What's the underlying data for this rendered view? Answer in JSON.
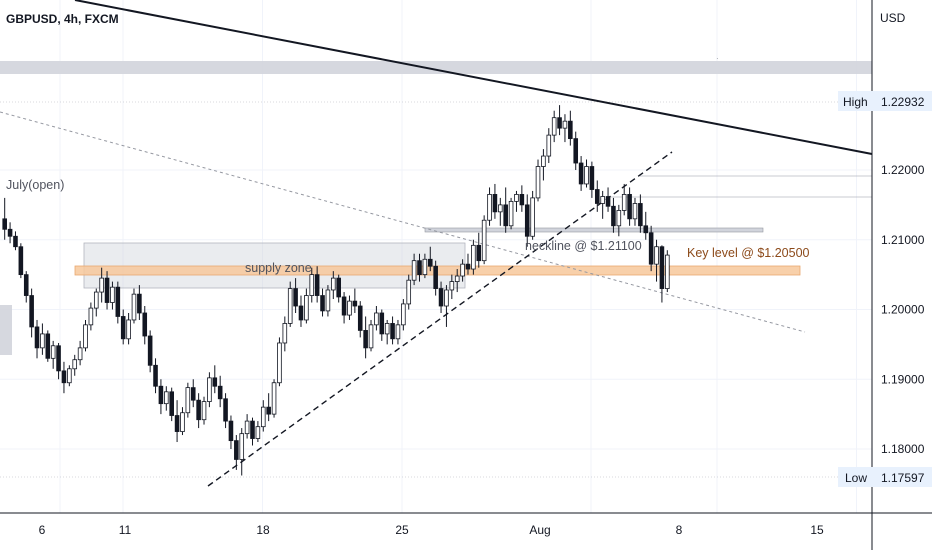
{
  "header": {
    "symbol": "GBPUSD, 4h, FXCM"
  },
  "price_axis": {
    "currency": "USD",
    "high_label": "High",
    "high_value": "1.22932",
    "low_label": "Low",
    "low_value": "1.17597"
  },
  "annotations": {
    "month_open": "July(open)",
    "supply_zone": "supply zone",
    "neckline": "neckline @ $1.21100",
    "key_level": "Key level @ $1.20500"
  },
  "colors": {
    "bull": "#ffffff",
    "bear": "#131722",
    "wick": "#131722",
    "grid": "#f0f3fa",
    "supply_zone": "#d1d4dc",
    "key_level": "#f7c89b",
    "key_level_text": "#8c4a1a",
    "trendline": "#131722",
    "tag_bg": "#e8f1fd"
  },
  "chart_data": {
    "type": "candlestick",
    "title": "GBPUSD, 4h, FXCM",
    "y_unit": "USD",
    "ylim": [
      1.1715,
      1.238
    ],
    "y_ticks": [
      1.18,
      1.19,
      1.2,
      1.21,
      1.22
    ],
    "y_tick_labels": [
      "1.18000",
      "1.19000",
      "1.20000",
      "1.21000",
      "1.22000"
    ],
    "x_tick_labels": [
      "6",
      "11",
      "18",
      "25",
      "Aug",
      "8",
      "15"
    ],
    "x_tick_bars": [
      4,
      18,
      49,
      80,
      122,
      150,
      181
    ],
    "bar_count_visible": 195,
    "high": 1.22932,
    "low": 1.17597,
    "candles": [
      [
        1.213,
        1.216,
        1.21,
        1.2115
      ],
      [
        1.2115,
        1.2125,
        1.2095,
        1.2105
      ],
      [
        1.2105,
        1.2112,
        1.2085,
        1.209
      ],
      [
        1.209,
        1.2095,
        1.2045,
        1.205
      ],
      [
        1.205,
        1.2055,
        1.201,
        1.202
      ],
      [
        1.202,
        1.203,
        1.196,
        1.1975
      ],
      [
        1.1975,
        1.1985,
        1.193,
        1.1945
      ],
      [
        1.1945,
        1.198,
        1.1935,
        1.1965
      ],
      [
        1.1965,
        1.197,
        1.1925,
        1.193
      ],
      [
        1.193,
        1.1955,
        1.1915,
        1.1948
      ],
      [
        1.1948,
        1.1952,
        1.19,
        1.1912
      ],
      [
        1.1912,
        1.1925,
        1.188,
        1.1895
      ],
      [
        1.1895,
        1.192,
        1.189,
        1.1915
      ],
      [
        1.1915,
        1.1935,
        1.1905,
        1.1928
      ],
      [
        1.1928,
        1.1955,
        1.192,
        1.1945
      ],
      [
        1.1945,
        1.1985,
        1.194,
        1.1978
      ],
      [
        1.1978,
        1.201,
        1.197,
        1.2002
      ],
      [
        1.2002,
        1.203,
        1.199,
        1.2025
      ],
      [
        1.2025,
        1.206,
        1.201,
        1.2045
      ],
      [
        1.2045,
        1.2055,
        1.2,
        1.201
      ],
      [
        1.201,
        1.204,
        1.2,
        1.2032
      ],
      [
        1.2032,
        1.204,
        1.198,
        1.199
      ],
      [
        1.199,
        1.2,
        1.195,
        1.1958
      ],
      [
        1.1958,
        1.1995,
        1.195,
        1.1985
      ],
      [
        1.1985,
        1.203,
        1.198,
        1.2022
      ],
      [
        1.2022,
        1.2035,
        1.1985,
        1.1995
      ],
      [
        1.1995,
        1.2005,
        1.195,
        1.1962
      ],
      [
        1.1962,
        1.197,
        1.191,
        1.192
      ],
      [
        1.192,
        1.193,
        1.188,
        1.189
      ],
      [
        1.189,
        1.19,
        1.185,
        1.1865
      ],
      [
        1.1865,
        1.189,
        1.1855,
        1.1882
      ],
      [
        1.1882,
        1.1888,
        1.184,
        1.1848
      ],
      [
        1.1848,
        1.187,
        1.181,
        1.1825
      ],
      [
        1.1825,
        1.186,
        1.182,
        1.1852
      ],
      [
        1.1852,
        1.1895,
        1.1845,
        1.1888
      ],
      [
        1.1888,
        1.19,
        1.186,
        1.187
      ],
      [
        1.187,
        1.188,
        1.183,
        1.1842
      ],
      [
        1.1842,
        1.1875,
        1.1835,
        1.1868
      ],
      [
        1.1868,
        1.191,
        1.186,
        1.1902
      ],
      [
        1.1902,
        1.192,
        1.188,
        1.189
      ],
      [
        1.189,
        1.1905,
        1.186,
        1.1872
      ],
      [
        1.1872,
        1.188,
        1.183,
        1.184
      ],
      [
        1.184,
        1.1848,
        1.18,
        1.1812
      ],
      [
        1.1812,
        1.182,
        1.177,
        1.1785
      ],
      [
        1.1785,
        1.183,
        1.1762,
        1.1822
      ],
      [
        1.1822,
        1.185,
        1.1815,
        1.184
      ],
      [
        1.184,
        1.1845,
        1.1805,
        1.1815
      ],
      [
        1.1815,
        1.184,
        1.181,
        1.1832
      ],
      [
        1.1832,
        1.187,
        1.1825,
        1.186
      ],
      [
        1.186,
        1.188,
        1.184,
        1.185
      ],
      [
        1.185,
        1.19,
        1.1845,
        1.1895
      ],
      [
        1.1895,
        1.196,
        1.189,
        1.1952
      ],
      [
        1.1952,
        1.199,
        1.194,
        1.198
      ],
      [
        1.198,
        1.204,
        1.1975,
        1.203
      ],
      [
        1.203,
        1.2045,
        1.1995,
        1.2005
      ],
      [
        1.2005,
        1.202,
        1.1975,
        1.1985
      ],
      [
        1.1985,
        1.203,
        1.198,
        1.202
      ],
      [
        1.202,
        1.206,
        1.201,
        1.205
      ],
      [
        1.205,
        1.2062,
        1.201,
        1.202
      ],
      [
        1.202,
        1.203,
        1.199,
        1.1998
      ],
      [
        1.1998,
        1.2035,
        1.199,
        1.2028
      ],
      [
        1.2028,
        1.2055,
        1.2015,
        1.2045
      ],
      [
        1.2045,
        1.205,
        1.201,
        1.2018
      ],
      [
        1.2018,
        1.2025,
        1.198,
        1.1992
      ],
      [
        1.1992,
        1.202,
        1.1985,
        1.2012
      ],
      [
        1.2012,
        1.203,
        1.1995,
        1.2005
      ],
      [
        1.2005,
        1.2012,
        1.196,
        1.197
      ],
      [
        1.197,
        1.199,
        1.193,
        1.1945
      ],
      [
        1.1945,
        1.1985,
        1.194,
        1.1978
      ],
      [
        1.1978,
        1.2005,
        1.197,
        1.1995
      ],
      [
        1.1995,
        1.2,
        1.1955,
        1.1965
      ],
      [
        1.1965,
        1.1985,
        1.195,
        1.198
      ],
      [
        1.198,
        1.199,
        1.195,
        1.1958
      ],
      [
        1.1958,
        1.1985,
        1.195,
        1.1978
      ],
      [
        1.1978,
        1.2015,
        1.197,
        1.2008
      ],
      [
        1.2008,
        1.205,
        1.2,
        1.2042
      ],
      [
        1.2042,
        1.208,
        1.2035,
        1.207
      ],
      [
        1.207,
        1.208,
        1.204,
        1.205
      ],
      [
        1.205,
        1.208,
        1.2045,
        1.2072
      ],
      [
        1.2072,
        1.209,
        1.2055,
        1.2062
      ],
      [
        1.2062,
        1.207,
        1.202,
        1.203
      ],
      [
        1.203,
        1.204,
        1.1995,
        1.2005
      ],
      [
        1.2005,
        1.2035,
        1.1975,
        1.2028
      ],
      [
        1.2028,
        1.205,
        1.2015,
        1.204
      ],
      [
        1.204,
        1.2058,
        1.2025,
        1.2048
      ],
      [
        1.2048,
        1.2072,
        1.204,
        1.2065
      ],
      [
        1.2065,
        1.208,
        1.205,
        1.2058
      ],
      [
        1.2058,
        1.21,
        1.205,
        1.2092
      ],
      [
        1.2092,
        1.211,
        1.206,
        1.207
      ],
      [
        1.207,
        1.2135,
        1.2065,
        1.2128
      ],
      [
        1.2128,
        1.2175,
        1.212,
        1.2165
      ],
      [
        1.2165,
        1.218,
        1.213,
        1.214
      ],
      [
        1.214,
        1.216,
        1.212,
        1.215
      ],
      [
        1.215,
        1.2175,
        1.211,
        1.212
      ],
      [
        1.212,
        1.216,
        1.2115,
        1.2155
      ],
      [
        1.2155,
        1.217,
        1.214,
        1.2165
      ],
      [
        1.2165,
        1.2178,
        1.214,
        1.215
      ],
      [
        1.215,
        1.2165,
        1.209,
        1.2105
      ],
      [
        1.2105,
        1.217,
        1.21,
        1.216
      ],
      [
        1.216,
        1.2215,
        1.2155,
        1.2205
      ],
      [
        1.2205,
        1.223,
        1.2185,
        1.222
      ],
      [
        1.222,
        1.226,
        1.221,
        1.225
      ],
      [
        1.225,
        1.2285,
        1.224,
        1.2275
      ],
      [
        1.2275,
        1.2293,
        1.225,
        1.226
      ],
      [
        1.226,
        1.228,
        1.224,
        1.227
      ],
      [
        1.227,
        1.2285,
        1.2235,
        1.2245
      ],
      [
        1.2245,
        1.2255,
        1.22,
        1.221
      ],
      [
        1.221,
        1.222,
        1.217,
        1.218
      ],
      [
        1.218,
        1.2215,
        1.2175,
        1.2205
      ],
      [
        1.2205,
        1.2212,
        1.216,
        1.2172
      ],
      [
        1.2172,
        1.2185,
        1.214,
        1.2152
      ],
      [
        1.2152,
        1.217,
        1.213,
        1.2162
      ],
      [
        1.2162,
        1.2175,
        1.214,
        1.2148
      ],
      [
        1.2148,
        1.216,
        1.211,
        1.212
      ],
      [
        1.212,
        1.215,
        1.2105,
        1.2142
      ],
      [
        1.2142,
        1.218,
        1.2135,
        1.2165
      ],
      [
        1.2165,
        1.2175,
        1.212,
        1.213
      ],
      [
        1.213,
        1.216,
        1.212,
        1.2152
      ],
      [
        1.2152,
        1.2165,
        1.211,
        1.212
      ],
      [
        1.212,
        1.214,
        1.21,
        1.211
      ],
      [
        1.211,
        1.212,
        1.2055,
        1.2065
      ],
      [
        1.2065,
        1.21,
        1.204,
        1.209
      ],
      [
        1.209,
        1.2092,
        1.201,
        1.203
      ],
      [
        1.203,
        1.2085,
        1.2025,
        1.2078
      ]
    ],
    "levels": [
      {
        "name": "neckline",
        "value": 1.211
      },
      {
        "name": "key level",
        "value": 1.205
      },
      {
        "name": "July(open)",
        "value": 1.2155
      }
    ],
    "grid": true
  }
}
